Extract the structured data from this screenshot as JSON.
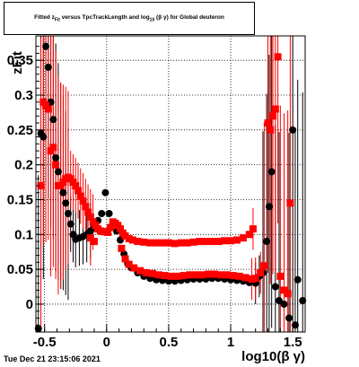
{
  "title": {
    "prefix": "Fitted  z",
    "sub": "Fit",
    "middle": "  versus TpcTrackLength and log",
    "sub2": "10",
    "suffix": "(β γ) for Global deuteron"
  },
  "timestamp": "Tue Dec 21 23:15:06 2021",
  "chart_data": {
    "type": "scatter",
    "ylabel": "zFit",
    "xlabel": "log10(β γ)",
    "xlim": [
      -0.57,
      1.6
    ],
    "ylim": [
      -0.04,
      0.385
    ],
    "xticks": [
      -0.5,
      0,
      0.5,
      1,
      1.5
    ],
    "xtick_labels": [
      "-0.5",
      "0",
      "0.5",
      "1",
      "1.5"
    ],
    "yticks": [
      0,
      0.05,
      0.1,
      0.15,
      0.2,
      0.25,
      0.3,
      0.35
    ],
    "ytick_labels": [
      "0",
      "0.05",
      "0.1",
      "0.15",
      "0.2",
      "0.25",
      "0.3",
      "0.35"
    ],
    "grid": true,
    "series": [
      {
        "color": "#000000",
        "marker": "circle",
        "points": [
          [
            -0.55,
            -0.035
          ],
          [
            -0.53,
            0.245
          ],
          [
            -0.51,
            0.24
          ],
          [
            -0.49,
            0.37
          ],
          [
            -0.47,
            0.34
          ],
          [
            -0.45,
            0.29
          ],
          [
            -0.43,
            0.265
          ],
          [
            -0.41,
            0.21
          ],
          [
            -0.39,
            0.19
          ],
          [
            -0.37,
            0.17
          ],
          [
            -0.35,
            0.16
          ],
          [
            -0.33,
            0.145
          ],
          [
            -0.31,
            0.13
          ],
          [
            -0.29,
            0.115
          ],
          [
            -0.27,
            0.1
          ],
          [
            -0.25,
            0.093
          ],
          [
            -0.22,
            0.095
          ],
          [
            -0.19,
            0.097
          ],
          [
            -0.16,
            0.1
          ],
          [
            -0.13,
            0.105
          ],
          [
            -0.1,
            0.11
          ],
          [
            -0.07,
            0.12
          ],
          [
            -0.04,
            0.13
          ],
          [
            -0.01,
            0.16
          ],
          [
            0.02,
            0.13
          ],
          [
            0.05,
            0.115
          ],
          [
            0.08,
            0.105
          ],
          [
            0.11,
            0.092
          ],
          [
            0.14,
            0.072
          ],
          [
            0.17,
            0.058
          ],
          [
            0.2,
            0.052
          ],
          [
            0.25,
            0.045
          ],
          [
            0.3,
            0.04
          ],
          [
            0.35,
            0.037
          ],
          [
            0.4,
            0.035
          ],
          [
            0.45,
            0.034
          ],
          [
            0.5,
            0.033
          ],
          [
            0.55,
            0.033
          ],
          [
            0.6,
            0.034
          ],
          [
            0.65,
            0.035
          ],
          [
            0.7,
            0.036
          ],
          [
            0.75,
            0.036
          ],
          [
            0.8,
            0.036
          ],
          [
            0.85,
            0.037
          ],
          [
            0.9,
            0.037
          ],
          [
            0.95,
            0.036
          ],
          [
            1.0,
            0.035
          ],
          [
            1.05,
            0.034
          ],
          [
            1.1,
            0.033
          ],
          [
            1.15,
            0.031
          ],
          [
            1.2,
            0.03
          ],
          [
            1.23,
            0.04
          ],
          [
            1.26,
            0.045
          ],
          [
            1.29,
            0.09
          ],
          [
            1.31,
            0.14
          ],
          [
            1.33,
            0.19
          ],
          [
            1.36,
            0.025
          ],
          [
            1.39,
            0.005
          ],
          [
            1.43,
            0.0
          ],
          [
            1.47,
            -0.02
          ],
          [
            1.5,
            0.25
          ],
          [
            1.52,
            -0.03
          ],
          [
            1.54,
            0.035
          ],
          [
            1.58,
            0.005
          ]
        ]
      },
      {
        "color": "#ff0000",
        "marker": "square",
        "points": [
          [
            -0.53,
            0.17
          ],
          [
            -0.51,
            0.29
          ],
          [
            -0.49,
            0.285
          ],
          [
            -0.47,
            0.28
          ],
          [
            -0.45,
            0.22
          ],
          [
            -0.43,
            0.225
          ],
          [
            -0.41,
            0.2
          ],
          [
            -0.39,
            0.17
          ],
          [
            -0.37,
            0.17
          ],
          [
            -0.35,
            0.175
          ],
          [
            -0.33,
            0.18
          ],
          [
            -0.31,
            0.182
          ],
          [
            -0.29,
            0.18
          ],
          [
            -0.27,
            0.175
          ],
          [
            -0.25,
            0.17
          ],
          [
            -0.23,
            0.163
          ],
          [
            -0.21,
            0.155
          ],
          [
            -0.19,
            0.148
          ],
          [
            -0.17,
            0.14
          ],
          [
            -0.15,
            0.132
          ],
          [
            -0.13,
            0.125
          ],
          [
            -0.11,
            0.118
          ],
          [
            -0.09,
            0.113
          ],
          [
            -0.07,
            0.108
          ],
          [
            -0.05,
            0.105
          ],
          [
            -0.03,
            0.104
          ],
          [
            -0.01,
            0.104
          ],
          [
            0.01,
            0.103
          ],
          [
            0.03,
            0.11
          ],
          [
            0.05,
            0.118
          ],
          [
            0.07,
            0.116
          ],
          [
            0.09,
            0.113
          ],
          [
            0.11,
            0.108
          ],
          [
            0.13,
            0.102
          ],
          [
            0.15,
            0.098
          ],
          [
            0.18,
            0.094
          ],
          [
            0.21,
            0.092
          ],
          [
            0.25,
            0.09
          ],
          [
            0.3,
            0.089
          ],
          [
            0.35,
            0.088
          ],
          [
            0.4,
            0.088
          ],
          [
            0.45,
            0.088
          ],
          [
            0.5,
            0.088
          ],
          [
            0.55,
            0.087
          ],
          [
            0.6,
            0.088
          ],
          [
            0.65,
            0.088
          ],
          [
            0.7,
            0.089
          ],
          [
            0.75,
            0.09
          ],
          [
            0.8,
            0.09
          ],
          [
            0.85,
            0.09
          ],
          [
            0.9,
            0.09
          ],
          [
            0.95,
            0.091
          ],
          [
            1.0,
            0.091
          ],
          [
            1.05,
            0.092
          ],
          [
            1.1,
            0.095
          ],
          [
            1.15,
            0.1
          ],
          [
            1.18,
            0.108
          ],
          [
            -0.13,
            0.095
          ],
          [
            -0.1,
            0.09
          ],
          [
            0.12,
            0.08
          ],
          [
            0.15,
            0.065
          ],
          [
            0.18,
            0.057
          ],
          [
            0.22,
            0.052
          ],
          [
            0.27,
            0.048
          ],
          [
            0.32,
            0.045
          ],
          [
            0.37,
            0.044
          ],
          [
            0.42,
            0.042
          ],
          [
            0.47,
            0.041
          ],
          [
            0.52,
            0.04
          ],
          [
            0.57,
            0.04
          ],
          [
            0.62,
            0.041
          ],
          [
            0.67,
            0.042
          ],
          [
            0.72,
            0.042
          ],
          [
            0.77,
            0.042
          ],
          [
            0.82,
            0.043
          ],
          [
            0.87,
            0.043
          ],
          [
            0.92,
            0.042
          ],
          [
            0.97,
            0.042
          ],
          [
            1.02,
            0.041
          ],
          [
            1.07,
            0.04
          ],
          [
            1.12,
            0.038
          ],
          [
            1.17,
            0.036
          ],
          [
            1.2,
            0.037
          ],
          [
            1.24,
            0.045
          ],
          [
            1.27,
            0.055
          ],
          [
            1.3,
            0.26
          ],
          [
            1.32,
            0.25
          ],
          [
            1.34,
            0.27
          ],
          [
            1.36,
            0.28
          ],
          [
            1.38,
            0.355
          ],
          [
            1.4,
            0.04
          ],
          [
            1.43,
            0.02
          ],
          [
            1.46,
            0.015
          ],
          [
            1.48,
            0.145
          ]
        ]
      }
    ]
  }
}
